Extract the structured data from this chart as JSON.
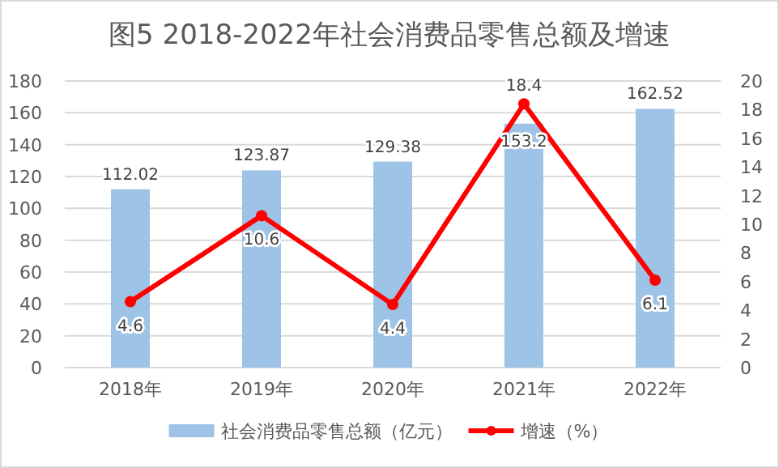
{
  "chart_data": {
    "type": "bar",
    "title": "图5 2018-2022年社会消费品零售总额及增速",
    "categories": [
      "2018年",
      "2019年",
      "2020年",
      "2021年",
      "2022年"
    ],
    "series": [
      {
        "name": "社会消费品零售总额（亿元）",
        "color": "#9dc3e6",
        "values": [
          112.02,
          123.87,
          129.38,
          153.2,
          162.52
        ]
      },
      {
        "name": "增速（%）",
        "type": "line",
        "axis": "y2",
        "color": "#ff0000",
        "marker": "circle",
        "values": [
          4.6,
          10.6,
          4.4,
          18.4,
          6.1
        ]
      }
    ],
    "ylim": [
      0,
      180
    ],
    "yticks": [
      0,
      20,
      40,
      60,
      80,
      100,
      120,
      140,
      160,
      180
    ],
    "y2lim": [
      0,
      20
    ],
    "y2ticks": [
      0,
      2,
      4,
      6,
      8,
      10,
      12,
      14,
      16,
      18,
      20
    ],
    "grid": "y",
    "legend": "bottom",
    "data_labels": true
  }
}
